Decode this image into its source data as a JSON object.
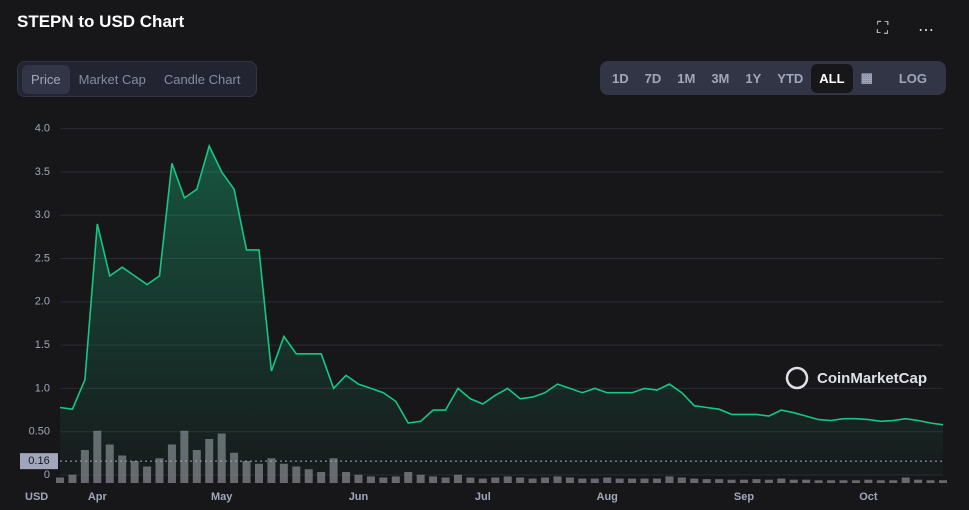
{
  "header": {
    "title": "STEPN to USD Chart"
  },
  "tabs": [
    "Price",
    "Market Cap",
    "Candle Chart"
  ],
  "ranges": [
    "1D",
    "7D",
    "1M",
    "3M",
    "1Y",
    "YTD",
    "ALL"
  ],
  "log_button": "LOG",
  "watermark": "CoinMarketCap",
  "chart_data": {
    "type": "line",
    "y_axis_label": "USD",
    "categories": [
      null,
      null,
      null,
      "Apr",
      null,
      null,
      null,
      null,
      null,
      null,
      null,
      null,
      null,
      "May",
      null,
      null,
      null,
      null,
      null,
      null,
      null,
      null,
      null,
      null,
      "Jun",
      null,
      null,
      null,
      null,
      null,
      null,
      null,
      null,
      null,
      "Jul",
      null,
      null,
      null,
      null,
      null,
      null,
      null,
      null,
      null,
      "Aug",
      null,
      null,
      null,
      null,
      null,
      null,
      null,
      null,
      null,
      null,
      "Sep",
      null,
      null,
      null,
      null,
      null,
      null,
      null,
      null,
      null,
      "Oct",
      null,
      null,
      null,
      null,
      null,
      null
    ],
    "series": [
      {
        "color": "#16c784",
        "values": [
          0.78,
          0.76,
          1.1,
          2.9,
          2.3,
          2.4,
          2.3,
          2.2,
          2.3,
          3.6,
          3.2,
          3.3,
          3.8,
          3.5,
          3.3,
          2.6,
          2.6,
          1.2,
          1.6,
          1.4,
          1.4,
          1.4,
          1.0,
          1.15,
          1.05,
          1.0,
          0.95,
          0.85,
          0.6,
          0.62,
          0.75,
          0.75,
          1.0,
          0.88,
          0.82,
          0.92,
          1.0,
          0.88,
          0.9,
          0.95,
          1.05,
          1.0,
          0.95,
          1.0,
          0.95,
          0.95,
          0.95,
          1.0,
          0.98,
          1.05,
          0.95,
          0.8,
          0.78,
          0.76,
          0.7,
          0.7,
          0.7,
          0.68,
          0.75,
          0.72,
          0.68,
          0.64,
          0.63,
          0.65,
          0.65,
          0.64,
          0.62,
          0.63,
          0.65,
          0.63,
          0.6,
          0.58
        ]
      }
    ],
    "volume": {
      "color": "#8a8d93",
      "values": [
        0.1,
        0.15,
        0.6,
        0.95,
        0.7,
        0.5,
        0.4,
        0.3,
        0.45,
        0.7,
        0.95,
        0.6,
        0.8,
        0.9,
        0.55,
        0.4,
        0.35,
        0.45,
        0.35,
        0.3,
        0.25,
        0.2,
        0.45,
        0.2,
        0.15,
        0.12,
        0.1,
        0.12,
        0.2,
        0.15,
        0.12,
        0.1,
        0.15,
        0.1,
        0.08,
        0.1,
        0.12,
        0.1,
        0.08,
        0.1,
        0.12,
        0.1,
        0.08,
        0.08,
        0.1,
        0.08,
        0.08,
        0.08,
        0.08,
        0.12,
        0.1,
        0.08,
        0.07,
        0.07,
        0.06,
        0.06,
        0.07,
        0.06,
        0.08,
        0.06,
        0.06,
        0.05,
        0.05,
        0.05,
        0.05,
        0.06,
        0.05,
        0.05,
        0.1,
        0.06,
        0.05,
        0.05
      ]
    },
    "ylim": [
      0,
      4.1
    ],
    "yticks": [
      {
        "value": 0,
        "label": "0"
      },
      {
        "value": 0.5,
        "label": "0.50"
      },
      {
        "value": 1,
        "label": "1.0"
      },
      {
        "value": 1.5,
        "label": "1.5"
      },
      {
        "value": 2,
        "label": "2.0"
      },
      {
        "value": 2.5,
        "label": "2.5"
      },
      {
        "value": 3,
        "label": "3.0"
      },
      {
        "value": 3.5,
        "label": "3.5"
      },
      {
        "value": 4,
        "label": "4.0"
      }
    ],
    "reference_line": 0.16,
    "grid": true
  }
}
